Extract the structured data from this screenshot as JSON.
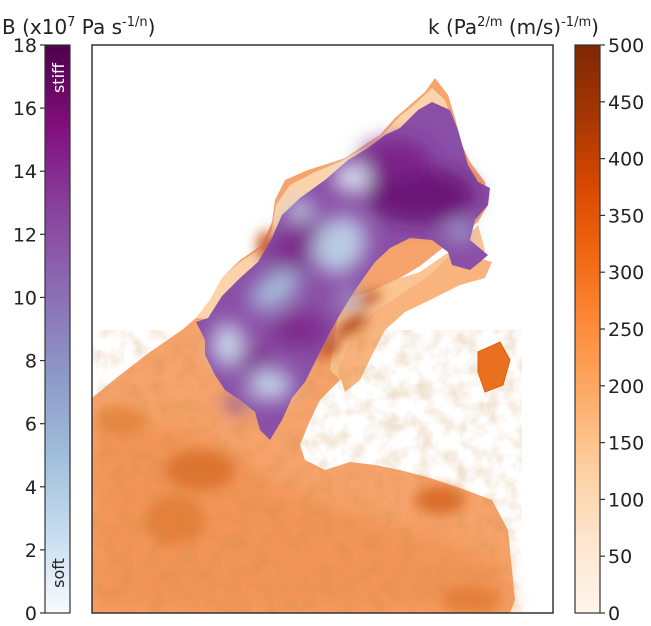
{
  "chart_data": [
    {
      "type": "colorbar",
      "title_base": "B (x10",
      "title_exp1": "7",
      "title_mid": " Pa s",
      "title_exp2": "-1/n",
      "title_end": ")",
      "range": [
        0,
        18
      ],
      "ticks": [
        "0",
        "2",
        "4",
        "6",
        "8",
        "10",
        "12",
        "14",
        "16",
        "18"
      ],
      "annotation_top": "stiff",
      "annotation_bottom": "soft",
      "colormap": [
        "#f7fbff",
        "#c6dbef",
        "#9ebcda",
        "#8c96c6",
        "#8c6bb1",
        "#88419d",
        "#810f7c",
        "#4d004b"
      ]
    },
    {
      "type": "colorbar",
      "title_base": "k (Pa",
      "title_exp1": "2/m",
      "title_mid": " (m/s)",
      "title_exp2": "-1/m",
      "title_end": ")",
      "range": [
        0,
        500
      ],
      "ticks": [
        "0",
        "50",
        "100",
        "150",
        "200",
        "250",
        "300",
        "350",
        "400",
        "450",
        "500"
      ],
      "colormap": [
        "#fff5eb",
        "#fee6ce",
        "#fdd0a2",
        "#fdae6b",
        "#fd8d3c",
        "#f16913",
        "#d94801",
        "#a63603",
        "#7f2704"
      ]
    },
    {
      "type": "map",
      "layers": [
        "friction coefficient k (ocean-side sediment, orange)",
        "ice stiffness B (glacier, purple)"
      ]
    }
  ]
}
